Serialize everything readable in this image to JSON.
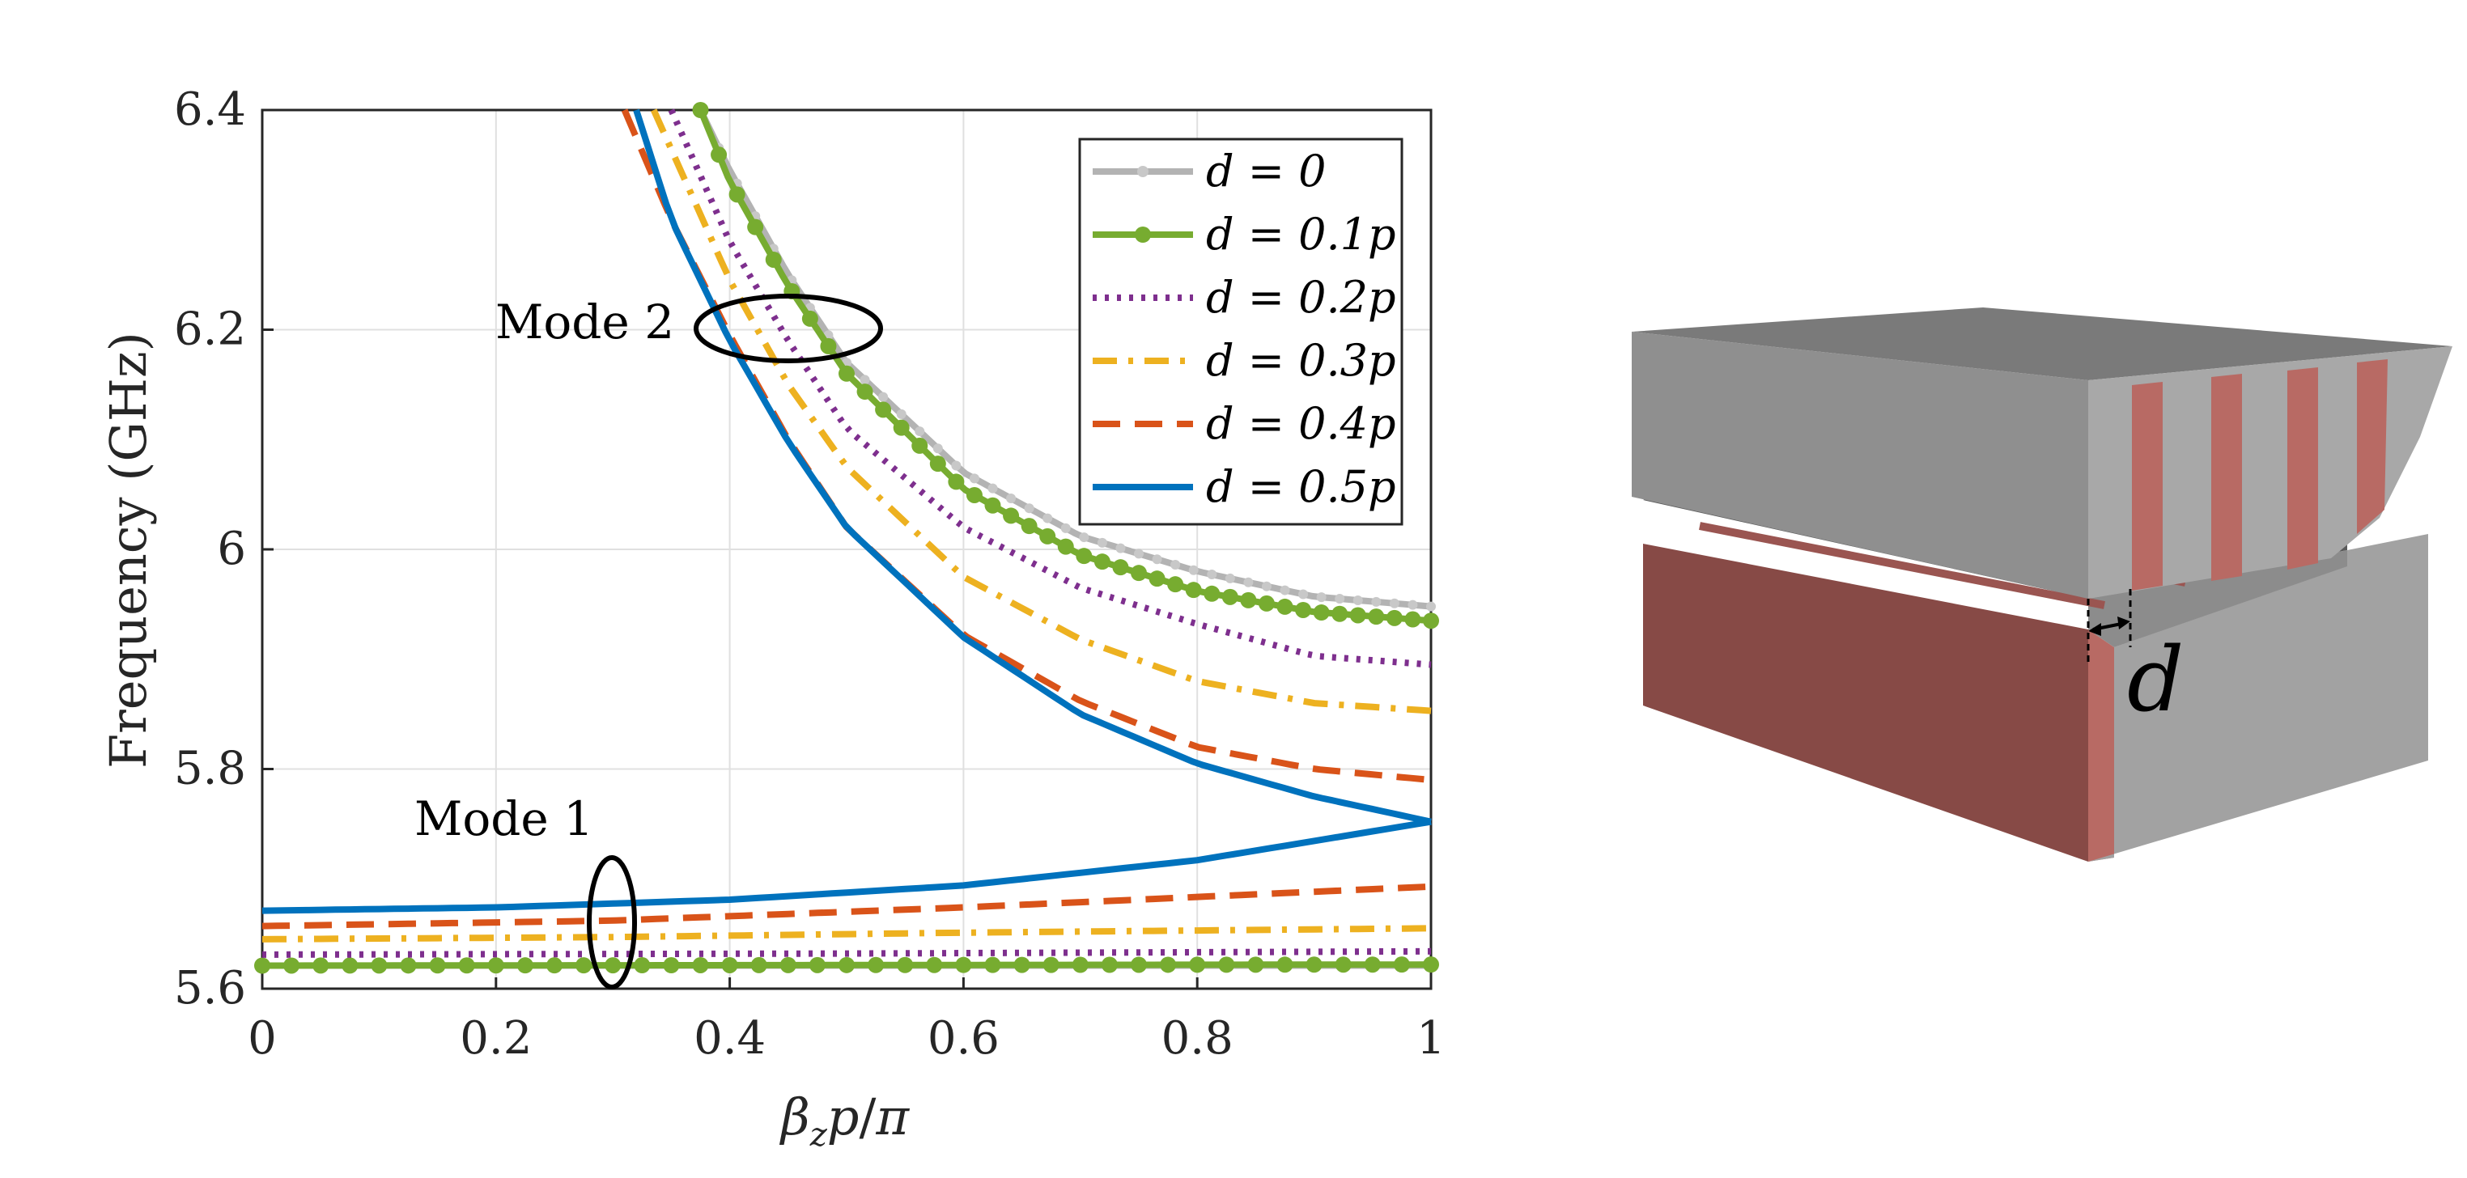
{
  "chart_data": {
    "type": "line",
    "xlabel": "βzp/π",
    "ylabel": "Frequency (GHz)",
    "xlim": [
      0,
      1
    ],
    "ylim": [
      5.6,
      6.4
    ],
    "xticks": [
      "0",
      "0.2",
      "0.4",
      "0.6",
      "0.8",
      "1"
    ],
    "yticks": [
      "5.6",
      "5.8",
      "6",
      "6.2",
      "6.4"
    ],
    "grid": true,
    "legend_position": "top-right",
    "annotations": [
      "Mode 1",
      "Mode 2"
    ],
    "series": [
      {
        "name": "d = 0",
        "color": "#b3b3b3",
        "style": "solid-star",
        "mode1": [
          [
            0,
            5.621
          ],
          [
            1,
            5.621
          ]
        ],
        "mode2": [
          [
            0.375,
            6.4
          ],
          [
            0.4,
            6.345
          ],
          [
            0.45,
            6.25
          ],
          [
            0.5,
            6.17
          ],
          [
            0.6,
            6.07
          ],
          [
            0.7,
            6.012
          ],
          [
            0.8,
            5.98
          ],
          [
            0.9,
            5.957
          ],
          [
            1.0,
            5.948
          ]
        ]
      },
      {
        "name": "d = 0.1p",
        "color": "#77ac30",
        "style": "solid-dot",
        "mode1": [
          [
            0,
            5.621
          ],
          [
            1,
            5.622
          ]
        ],
        "mode2": [
          [
            0.375,
            6.4
          ],
          [
            0.4,
            6.335
          ],
          [
            0.45,
            6.24
          ],
          [
            0.5,
            6.16
          ],
          [
            0.6,
            6.055
          ],
          [
            0.7,
            5.995
          ],
          [
            0.8,
            5.962
          ],
          [
            0.9,
            5.943
          ],
          [
            1.0,
            5.935
          ]
        ]
      },
      {
        "name": "d = 0.2p",
        "color": "#7e2f8e",
        "style": "dotted",
        "mode1": [
          [
            0,
            5.631
          ],
          [
            0.5,
            5.632
          ],
          [
            1,
            5.634
          ]
        ],
        "mode2": [
          [
            0.35,
            6.4
          ],
          [
            0.4,
            6.28
          ],
          [
            0.45,
            6.19
          ],
          [
            0.5,
            6.11
          ],
          [
            0.6,
            6.02
          ],
          [
            0.7,
            5.965
          ],
          [
            0.8,
            5.932
          ],
          [
            0.9,
            5.903
          ],
          [
            1.0,
            5.895
          ]
        ]
      },
      {
        "name": "d = 0.3p",
        "color": "#edb120",
        "style": "dashdot",
        "mode1": [
          [
            0,
            5.645
          ],
          [
            0.3,
            5.647
          ],
          [
            0.6,
            5.651
          ],
          [
            1,
            5.655
          ]
        ],
        "mode2": [
          [
            0.335,
            6.4
          ],
          [
            0.4,
            6.245
          ],
          [
            0.45,
            6.15
          ],
          [
            0.5,
            6.075
          ],
          [
            0.6,
            5.975
          ],
          [
            0.7,
            5.918
          ],
          [
            0.8,
            5.88
          ],
          [
            0.9,
            5.86
          ],
          [
            1.0,
            5.853
          ]
        ]
      },
      {
        "name": "d = 0.4p",
        "color": "#d95319",
        "style": "dashed",
        "mode1": [
          [
            0,
            5.657
          ],
          [
            0.3,
            5.662
          ],
          [
            0.6,
            5.674
          ],
          [
            1,
            5.693
          ]
        ],
        "mode2": [
          [
            0.31,
            6.4
          ],
          [
            0.35,
            6.3
          ],
          [
            0.4,
            6.195
          ],
          [
            0.45,
            6.1
          ],
          [
            0.5,
            6.02
          ],
          [
            0.6,
            5.922
          ],
          [
            0.7,
            5.862
          ],
          [
            0.8,
            5.82
          ],
          [
            0.9,
            5.8
          ],
          [
            1.0,
            5.79
          ]
        ]
      },
      {
        "name": "d = 0.5p",
        "color": "#0072bd",
        "style": "solid",
        "mode1": [
          [
            0,
            5.671
          ],
          [
            0.2,
            5.674
          ],
          [
            0.4,
            5.681
          ],
          [
            0.6,
            5.694
          ],
          [
            0.8,
            5.717
          ],
          [
            1.0,
            5.752
          ]
        ],
        "mode2": [
          [
            0.32,
            6.4
          ],
          [
            0.35,
            6.3
          ],
          [
            0.4,
            6.19
          ],
          [
            0.45,
            6.098
          ],
          [
            0.5,
            6.02
          ],
          [
            0.6,
            5.92
          ],
          [
            0.7,
            5.85
          ],
          [
            0.8,
            5.805
          ],
          [
            0.9,
            5.775
          ],
          [
            1.0,
            5.752
          ]
        ]
      }
    ]
  },
  "figure": {
    "mode1_label": "Mode 1",
    "mode2_label": "Mode 2",
    "diagram_label": "d",
    "colors": {
      "block_top": "#7a7a7a",
      "block_side": "#9a9a9a",
      "strip_red": "#b86a64",
      "block_red": "#8a4a46"
    }
  }
}
